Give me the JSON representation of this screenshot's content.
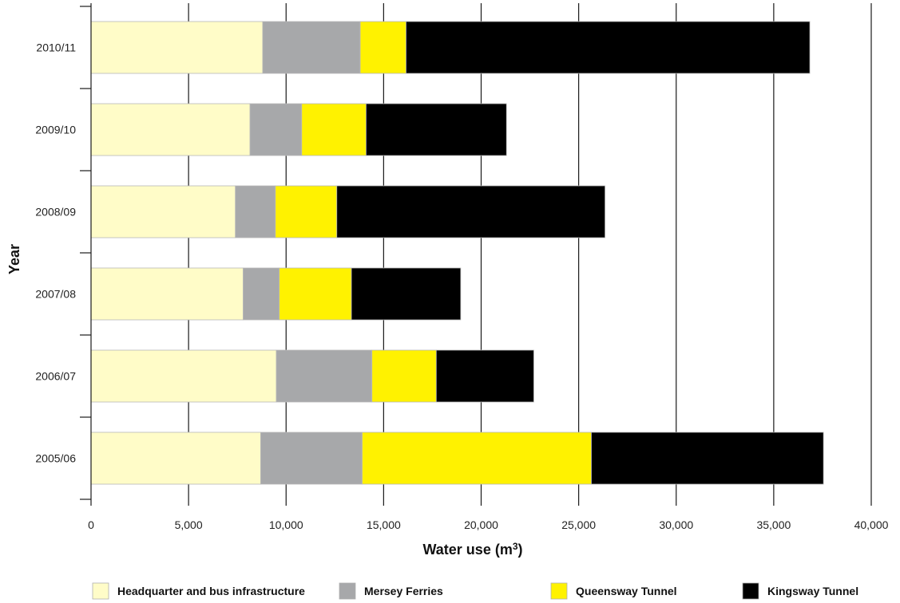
{
  "chart_data": {
    "type": "bar",
    "orientation": "horizontal",
    "stacked": true,
    "title": "",
    "xlabel": "Water use (m",
    "xlabel_superscript": "3",
    "xlabel_suffix": ")",
    "ylabel": "Year",
    "xlim": [
      0,
      40000
    ],
    "xticks": [
      0,
      5000,
      10000,
      15000,
      20000,
      25000,
      30000,
      35000,
      40000
    ],
    "xtick_labels": [
      "0",
      "5,000",
      "10,000",
      "15,000",
      "20,000",
      "25,000",
      "30,000",
      "35,000",
      "40,000"
    ],
    "grid": "vertical",
    "legend_position": "bottom",
    "categories": [
      "2010/11",
      "2009/10",
      "2008/09",
      "2007/08",
      "2006/07",
      "2005/06"
    ],
    "series": [
      {
        "name": "Headquarter and bus infrastructure",
        "color": "#fffcc8",
        "values": [
          8800,
          8150,
          7400,
          7800,
          9500,
          8700
        ]
      },
      {
        "name": "Mersey Ferries",
        "color": "#a7a8aa",
        "values": [
          5000,
          2650,
          2050,
          1850,
          4900,
          5200
        ]
      },
      {
        "name": "Queensway Tunnel",
        "color": "#fff200",
        "values": [
          2350,
          3300,
          3150,
          3700,
          3300,
          11750
        ]
      },
      {
        "name": "Kingsway Tunnel",
        "color": "#000000",
        "values": [
          20700,
          7200,
          13750,
          5600,
          5000,
          11900
        ]
      }
    ]
  }
}
